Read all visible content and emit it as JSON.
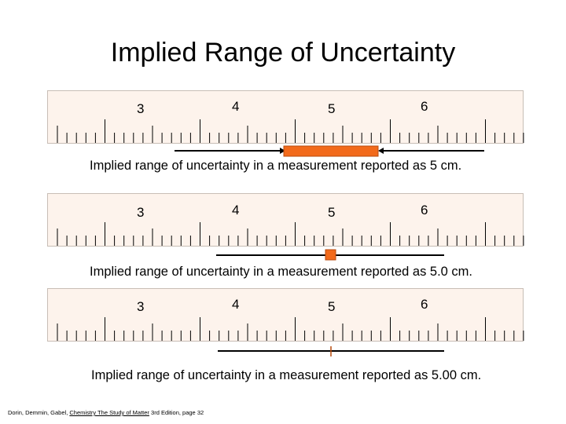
{
  "title": "Implied Range of Uncertainty",
  "colors": {
    "ruler_bg": "#fdf3ec",
    "ruler_border": "#c8beb6",
    "range_fill": "#f26a1b",
    "range_stroke": "#b84a0c"
  },
  "rulers": [
    {
      "labels": [
        "3",
        "4",
        "5",
        "6"
      ],
      "measurement": "5 cm",
      "caption": "Implied range of uncertainty in a measurement reported as 5 cm."
    },
    {
      "labels": [
        "3",
        "4",
        "5",
        "6"
      ],
      "measurement": "5.0 cm",
      "caption": "Implied range of uncertainty in a measurement reported as 5.0 cm."
    },
    {
      "labels": [
        "3",
        "4",
        "5",
        "6"
      ],
      "measurement": "5.00 cm",
      "caption": "Implied range of uncertainty in a measurement reported as 5.00 cm."
    }
  ],
  "citation": {
    "authors": "Dorin, Demmin, Gabel, ",
    "book": "Chemistry The Study of Matter",
    "rest": " 3rd Edition, page 32"
  }
}
